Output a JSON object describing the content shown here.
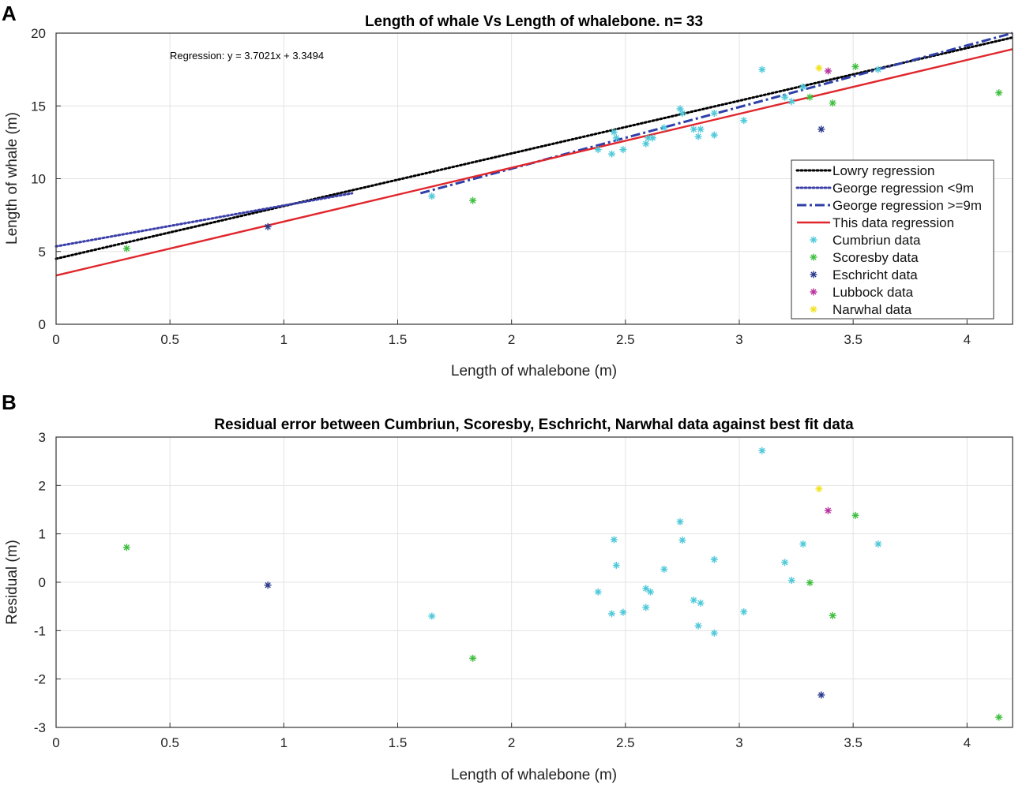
{
  "chart_data": [
    {
      "panel_label": "A",
      "type": "scatter",
      "title": "Length of whale Vs Length of whalebone. n= 33",
      "xlabel": "Length of whalebone (m)",
      "ylabel": "Length of whale (m)",
      "xlim": [
        0,
        4.2
      ],
      "ylim": [
        0,
        20
      ],
      "xticks": [
        0,
        0.5,
        1,
        1.5,
        2,
        2.5,
        3,
        3.5,
        4
      ],
      "xtick_labels": [
        "0",
        "0.5",
        "1",
        "1.5",
        "2",
        "2.5",
        "3",
        "3.5",
        "4"
      ],
      "yticks": [
        0,
        5,
        10,
        15,
        20
      ],
      "ytick_labels": [
        "0",
        "5",
        "10",
        "15",
        "20"
      ],
      "grid": true,
      "legend_position": "lower-right",
      "annotation": "Regression: y = 3.7021x + 3.3494",
      "lines": [
        {
          "name": "Lowry regression",
          "style": "dotted",
          "color": "#000000",
          "x": [
            0,
            4.2
          ],
          "y": [
            4.5,
            19.7
          ]
        },
        {
          "name": "George regression <9m",
          "style": "dotted",
          "color": "#3b3fa8",
          "x": [
            0,
            1.3
          ],
          "y": [
            5.35,
            9.0
          ]
        },
        {
          "name": "George regression >=9m",
          "style": "dashdot",
          "color": "#2e3fa8",
          "x": [
            1.6,
            4.2
          ],
          "y": [
            9.0,
            20.0
          ]
        },
        {
          "name": "This data regression",
          "style": "solid",
          "color": "#e0262b",
          "x": [
            0,
            4.2
          ],
          "y": [
            3.3494,
            18.898
          ]
        }
      ],
      "series": [
        {
          "name": "Cumbriun  data",
          "color": "#4fc9d9",
          "points": [
            [
              1.65,
              8.8
            ],
            [
              2.38,
              12.0
            ],
            [
              2.44,
              11.7
            ],
            [
              2.45,
              13.2
            ],
            [
              2.46,
              12.8
            ],
            [
              2.49,
              12.0
            ],
            [
              2.59,
              12.4
            ],
            [
              2.6,
              12.8
            ],
            [
              2.62,
              12.8
            ],
            [
              2.67,
              13.5
            ],
            [
              2.74,
              14.8
            ],
            [
              2.75,
              14.5
            ],
            [
              2.8,
              13.4
            ],
            [
              2.82,
              12.9
            ],
            [
              2.83,
              13.4
            ],
            [
              2.89,
              13.0
            ],
            [
              2.89,
              14.5
            ],
            [
              3.02,
              14.0
            ],
            [
              3.1,
              17.5
            ],
            [
              3.2,
              15.6
            ],
            [
              3.23,
              15.3
            ],
            [
              3.28,
              16.3
            ],
            [
              3.61,
              17.5
            ]
          ]
        },
        {
          "name": " Scoresby data",
          "color": "#3fbf3f",
          "points": [
            [
              0.31,
              5.2
            ],
            [
              1.83,
              8.5
            ],
            [
              3.31,
              15.6
            ],
            [
              3.41,
              15.2
            ],
            [
              3.51,
              17.7
            ],
            [
              4.14,
              15.9
            ]
          ]
        },
        {
          "name": "Eschricht data",
          "color": "#2b3a8c",
          "points": [
            [
              0.93,
              6.7
            ],
            [
              3.36,
              13.4
            ]
          ]
        },
        {
          "name": "Lubbock data",
          "color": "#b8309e",
          "points": [
            [
              3.39,
              17.4
            ]
          ]
        },
        {
          "name": "Narwhal data",
          "color": "#f2e21e",
          "points": [
            [
              3.35,
              17.6
            ]
          ]
        }
      ]
    },
    {
      "panel_label": "B",
      "type": "scatter",
      "title": "Residual error between Cumbriun, Scoresby, Eschricht, Narwhal data against best fit data",
      "xlabel": "Length of whalebone (m)",
      "ylabel": "Residual (m)",
      "xlim": [
        0,
        4.2
      ],
      "ylim": [
        -3,
        3
      ],
      "xticks": [
        0,
        0.5,
        1,
        1.5,
        2,
        2.5,
        3,
        3.5,
        4
      ],
      "xtick_labels": [
        "0",
        "0.5",
        "1",
        "1.5",
        "2",
        "2.5",
        "3",
        "3.5",
        "4"
      ],
      "yticks": [
        -3,
        -2,
        -1,
        0,
        1,
        2,
        3
      ],
      "ytick_labels": [
        "-3",
        "-2",
        "-1",
        "0",
        "1",
        "2",
        "3"
      ],
      "grid": true,
      "series": [
        {
          "name": "Cumbriun  data",
          "color": "#4fc9d9",
          "points": [
            [
              1.65,
              -0.7
            ],
            [
              2.38,
              -0.2
            ],
            [
              2.44,
              -0.65
            ],
            [
              2.45,
              0.88
            ],
            [
              2.46,
              0.35
            ],
            [
              2.49,
              -0.62
            ],
            [
              2.59,
              -0.13
            ],
            [
              2.59,
              -0.52
            ],
            [
              2.61,
              -0.2
            ],
            [
              2.67,
              0.27
            ],
            [
              2.74,
              1.25
            ],
            [
              2.75,
              0.87
            ],
            [
              2.8,
              -0.37
            ],
            [
              2.82,
              -0.9
            ],
            [
              2.83,
              -0.43
            ],
            [
              2.89,
              0.47
            ],
            [
              2.89,
              -1.05
            ],
            [
              3.02,
              -0.61
            ],
            [
              3.1,
              2.72
            ],
            [
              3.2,
              0.41
            ],
            [
              3.23,
              0.04
            ],
            [
              3.28,
              0.79
            ],
            [
              3.61,
              0.79
            ]
          ]
        },
        {
          "name": " Scoresby data",
          "color": "#3fbf3f",
          "points": [
            [
              0.31,
              0.72
            ],
            [
              1.83,
              -1.57
            ],
            [
              3.31,
              -0.01
            ],
            [
              3.41,
              -0.69
            ],
            [
              3.51,
              1.38
            ],
            [
              4.14,
              -2.79
            ]
          ]
        },
        {
          "name": "Eschricht data",
          "color": "#2b3a8c",
          "points": [
            [
              0.93,
              -0.06
            ],
            [
              3.36,
              -2.33
            ]
          ]
        },
        {
          "name": "Lubbock data",
          "color": "#b8309e",
          "points": [
            [
              3.39,
              1.48
            ]
          ]
        },
        {
          "name": "Narwhal data",
          "color": "#f2e21e",
          "points": [
            [
              3.35,
              1.93
            ]
          ]
        }
      ]
    }
  ]
}
